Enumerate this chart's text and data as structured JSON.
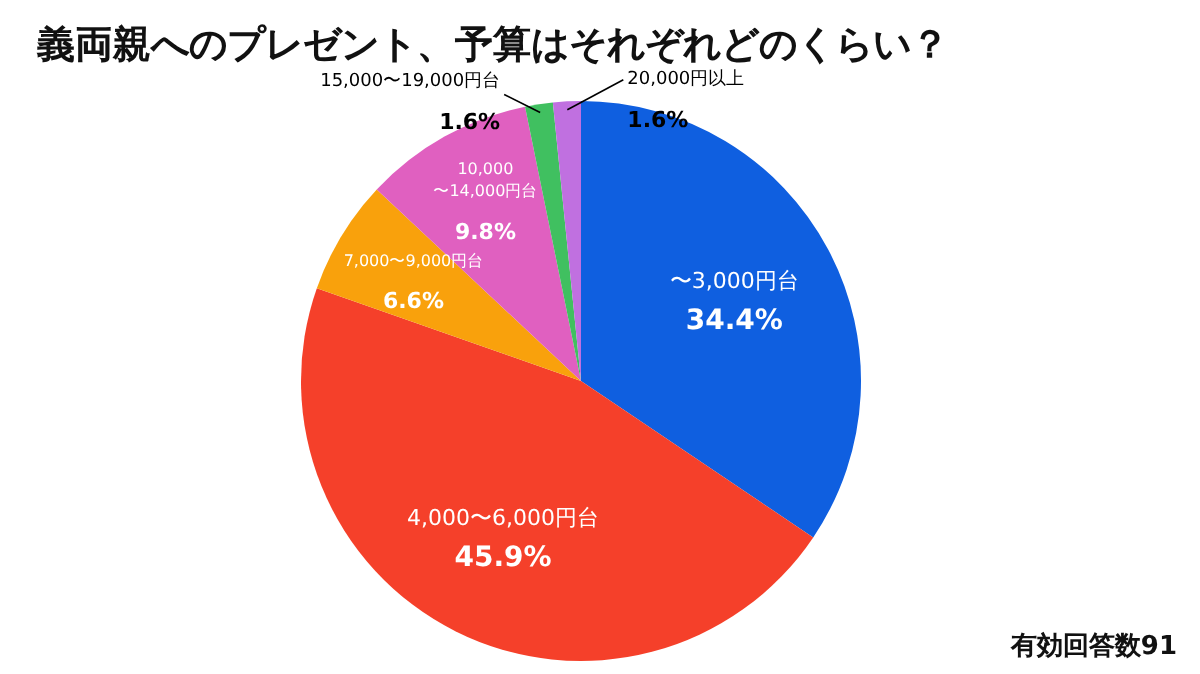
{
  "chart_data": {
    "type": "pie",
    "title": "義両親へのプレゼント、予算はそれぞれどのくらい？",
    "categories": [
      "〜3,000円台",
      "4,000〜6,000円台",
      "7,000〜9,000円台",
      "10,000\n〜14,000円台",
      "15,000〜19,000円台",
      "20,000円以上"
    ],
    "values": [
      34.4,
      45.9,
      6.6,
      9.8,
      1.6,
      1.6
    ],
    "value_labels": [
      "34.4%",
      "45.9%",
      "6.6%",
      "9.8%",
      "1.6%",
      "1.6%"
    ],
    "colors": [
      "#0f5fe0",
      "#f5402a",
      "#f9a10c",
      "#e060c0",
      "#40c060",
      "#c070e0"
    ],
    "annotations": [
      "有効回答数91"
    ]
  }
}
